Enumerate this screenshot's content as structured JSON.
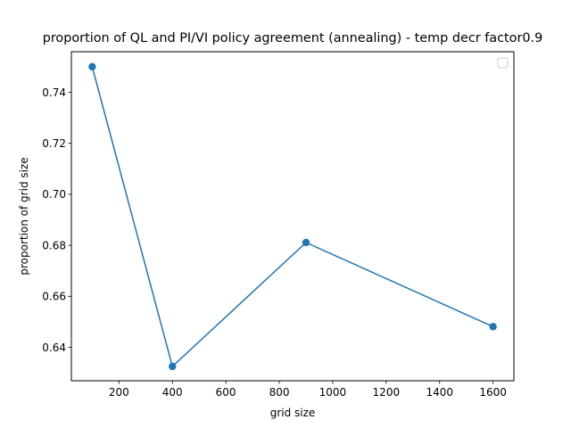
{
  "chart_data": {
    "type": "line",
    "title": "proportion of QL and PI/VI policy agreement (annealing) - temp decr factor0.9",
    "xlabel": "grid size",
    "ylabel": "proportion of grid size",
    "xlim": [
      22,
      1678
    ],
    "ylim": [
      0.6269,
      0.7559
    ],
    "xticks": [
      200,
      400,
      600,
      800,
      1000,
      1200,
      1400,
      1600
    ],
    "yticks": [
      0.64,
      0.66,
      0.68,
      0.7,
      0.72,
      0.74
    ],
    "xtick_labels": [
      "200",
      "400",
      "600",
      "800",
      "1000",
      "1200",
      "1400",
      "1600"
    ],
    "ytick_labels": [
      "0.64",
      "0.66",
      "0.68",
      "0.70",
      "0.72",
      "0.74"
    ],
    "series": [
      {
        "x": [
          100,
          400,
          900,
          1600
        ],
        "y": [
          0.75,
          0.6325,
          0.6811,
          0.6481
        ],
        "color": "#1f77b4",
        "marker": "circle"
      }
    ],
    "grid": false,
    "legend": {
      "placement": "upper right",
      "entries": []
    }
  }
}
